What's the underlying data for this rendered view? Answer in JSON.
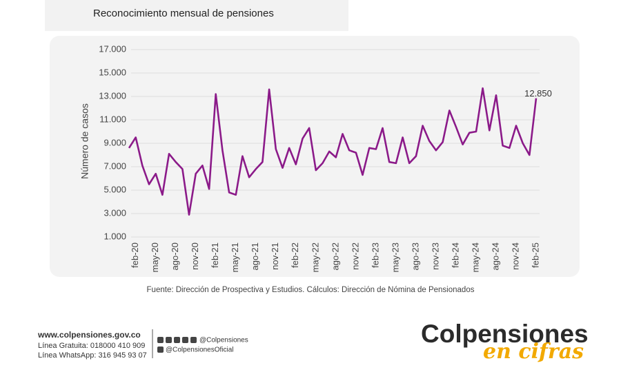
{
  "header": {
    "title": "Reconocimiento mensual de pensiones"
  },
  "chart_data": {
    "type": "line",
    "y_label": "Número de casos",
    "categories": [
      null,
      "feb-20",
      null,
      null,
      "may-20",
      null,
      null,
      "ago-20",
      null,
      null,
      "nov-20",
      null,
      null,
      "feb-21",
      null,
      null,
      "may-21",
      null,
      null,
      "ago-21",
      null,
      null,
      "nov-21",
      null,
      null,
      "feb-22",
      null,
      null,
      "may-22",
      null,
      null,
      "ago-22",
      null,
      null,
      "nov-22",
      null,
      null,
      "feb-23",
      null,
      null,
      "may-23",
      null,
      null,
      "ago-23",
      null,
      null,
      "nov-23",
      null,
      null,
      "feb-24",
      null,
      null,
      "may-24",
      null,
      null,
      "ago-24",
      null,
      null,
      "nov-24",
      null,
      null,
      "feb-25"
    ],
    "values": [
      8600,
      9500,
      7100,
      5500,
      6400,
      4600,
      8100,
      7400,
      6800,
      2900,
      6400,
      7100,
      5100,
      13200,
      8400,
      4800,
      4600,
      7900,
      6100,
      6800,
      7400,
      13600,
      8500,
      6900,
      8600,
      7200,
      9400,
      10300,
      6700,
      7300,
      8300,
      7800,
      9800,
      8400,
      8200,
      6300,
      8600,
      8500,
      10300,
      7400,
      7300,
      9500,
      7300,
      7900,
      10500,
      9200,
      8400,
      9100,
      11800,
      10400,
      8900,
      9900,
      10000,
      13700,
      10100,
      13100,
      8800,
      8600,
      10500,
      9000,
      8000,
      12850
    ],
    "value_labels": [
      null,
      null,
      null,
      null,
      null,
      null,
      null,
      null,
      null,
      null,
      null,
      null,
      null,
      null,
      null,
      null,
      null,
      null,
      null,
      null,
      null,
      null,
      null,
      null,
      null,
      null,
      null,
      null,
      null,
      null,
      null,
      null,
      null,
      null,
      null,
      null,
      null,
      null,
      null,
      null,
      null,
      null,
      null,
      null,
      null,
      null,
      null,
      null,
      null,
      null,
      null,
      null,
      null,
      null,
      null,
      null,
      null,
      null,
      null,
      null,
      null,
      "12.850"
    ],
    "color": "#8b1a89",
    "ylim": [
      1000,
      17000
    ],
    "yticks": [
      {
        "value": 1000,
        "label": "1.000"
      },
      {
        "value": 3000,
        "label": "3.000"
      },
      {
        "value": 5000,
        "label": "5.000"
      },
      {
        "value": 7000,
        "label": "7.000"
      },
      {
        "value": 9000,
        "label": "9.000"
      },
      {
        "value": 11000,
        "label": "11.000"
      },
      {
        "value": 13000,
        "label": "13.000"
      },
      {
        "value": 15000,
        "label": "15.000"
      },
      {
        "value": 17000,
        "label": "17.000"
      }
    ],
    "grid": true
  },
  "source": "Fuente: Dirección de Prospectiva y Estudios. Cálculos: Dirección de Nómina de Pensionados",
  "footer": {
    "website": "www.colpensiones.gov.co",
    "line1": "Línea Gratuita: 018000 410 909",
    "line2": "Línea WhatsApp: 316 945 93 07",
    "social1": "@Colpensiones",
    "social2": "@ColpensionesOficial"
  },
  "logo": {
    "name": "Colpensiones",
    "tagline": "en cifras"
  }
}
